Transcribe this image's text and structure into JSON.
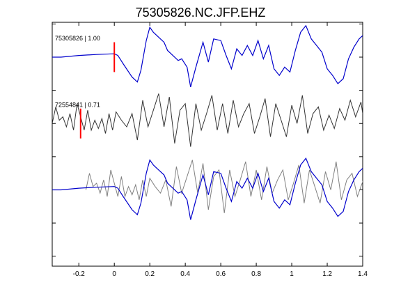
{
  "chart_data": {
    "type": "line",
    "title": "75305826.NC.JFP.EHZ",
    "xlabel": "",
    "ylabel": "",
    "xlim": [
      -0.35,
      1.4
    ],
    "x_ticks": [
      -0.2,
      0,
      0.2,
      0.4,
      0.6,
      0.8,
      1,
      1.2,
      1.4
    ],
    "x_tick_labels": [
      "-0.2",
      "0",
      "0.2",
      "0.4",
      "0.6",
      "0.8",
      "1",
      "1.2",
      "1.4"
    ],
    "ylim": [
      -6.3,
      1.05
    ],
    "y_ticks": [
      -6,
      -5,
      -4,
      -3,
      -2,
      -1,
      0,
      1
    ],
    "grid": false,
    "y_tick_labels_shown": false,
    "traces": [
      {
        "label": "75305826 | 1.00",
        "color": "#0000cc",
        "baseline": 0,
        "pick_x": 0,
        "x": [
          -0.35,
          -0.3,
          -0.2,
          -0.1,
          -0.05,
          0,
          0.02,
          0.05,
          0.1,
          0.13,
          0.15,
          0.18,
          0.2,
          0.22,
          0.25,
          0.28,
          0.3,
          0.33,
          0.36,
          0.38,
          0.41,
          0.43,
          0.46,
          0.5,
          0.53,
          0.56,
          0.6,
          0.63,
          0.66,
          0.69,
          0.72,
          0.75,
          0.78,
          0.81,
          0.84,
          0.87,
          0.9,
          0.93,
          0.96,
          0.99,
          1.02,
          1.05,
          1.08,
          1.11,
          1.14,
          1.17,
          1.2,
          1.23,
          1.26,
          1.29,
          1.32,
          1.35,
          1.38,
          1.4
        ],
        "y": [
          0,
          0,
          0.05,
          0.08,
          0.09,
          0.1,
          0.05,
          -0.2,
          -0.6,
          -0.75,
          -0.4,
          0.5,
          0.9,
          0.75,
          0.6,
          0.45,
          0.2,
          0.05,
          -0.1,
          -0.05,
          -0.3,
          -0.9,
          -0.3,
          0.45,
          -0.15,
          0.55,
          0.5,
          0.05,
          -0.35,
          0.25,
          0.05,
          0.35,
          0.05,
          0.5,
          -0.05,
          0.35,
          -0.35,
          -0.55,
          -0.3,
          -0.45,
          0.2,
          0.75,
          0.95,
          0.55,
          0.35,
          0.15,
          -0.35,
          -0.55,
          -0.8,
          -0.65,
          -0.05,
          0.3,
          0.55,
          0.65
        ]
      },
      {
        "label": "72554841 | 0.71",
        "color": "#333333",
        "baseline": -2,
        "pick_x": -0.19,
        "x": [
          -0.35,
          -0.33,
          -0.31,
          -0.29,
          -0.27,
          -0.25,
          -0.23,
          -0.21,
          -0.19,
          -0.17,
          -0.15,
          -0.13,
          -0.11,
          -0.09,
          -0.07,
          -0.05,
          -0.03,
          -0.01,
          0.01,
          0.04,
          0.07,
          0.1,
          0.13,
          0.16,
          0.19,
          0.22,
          0.25,
          0.28,
          0.31,
          0.34,
          0.37,
          0.4,
          0.43,
          0.46,
          0.49,
          0.52,
          0.55,
          0.58,
          0.61,
          0.64,
          0.67,
          0.7,
          0.73,
          0.76,
          0.79,
          0.82,
          0.85,
          0.88,
          0.91,
          0.94,
          0.97,
          1,
          1.03,
          1.06,
          1.09,
          1.12,
          1.15,
          1.18,
          1.21,
          1.24,
          1.27,
          1.3,
          1.33,
          1.36,
          1.39,
          1.4
        ],
        "y": [
          0,
          0.5,
          0.1,
          0.2,
          -0.1,
          0.3,
          -0.2,
          0.6,
          0.2,
          -0.2,
          0.4,
          -0.2,
          0.1,
          -0.15,
          0.15,
          -0.3,
          0.3,
          -0.2,
          0.35,
          0.1,
          -0.1,
          0.3,
          -0.5,
          0.7,
          -0.1,
          0.4,
          0.9,
          -0.1,
          0.8,
          -0.6,
          0.4,
          0.6,
          -0.7,
          0.6,
          -0.2,
          0.3,
          0.85,
          -0.2,
          0.6,
          -0.3,
          0.7,
          -0.1,
          0.3,
          0.6,
          -0.3,
          0.2,
          0.75,
          -0.4,
          0.6,
          0.1,
          -0.4,
          0.55,
          0.0,
          0.85,
          -0.3,
          0.3,
          0.5,
          -0.2,
          0.25,
          -0.15,
          0.45,
          0.1,
          0.7,
          0.2,
          0.65,
          0.3
        ]
      }
    ],
    "overlay": {
      "baseline": -4,
      "description_colors": {
        "reference": "#0000cc",
        "shifted": "#808080"
      }
    }
  }
}
